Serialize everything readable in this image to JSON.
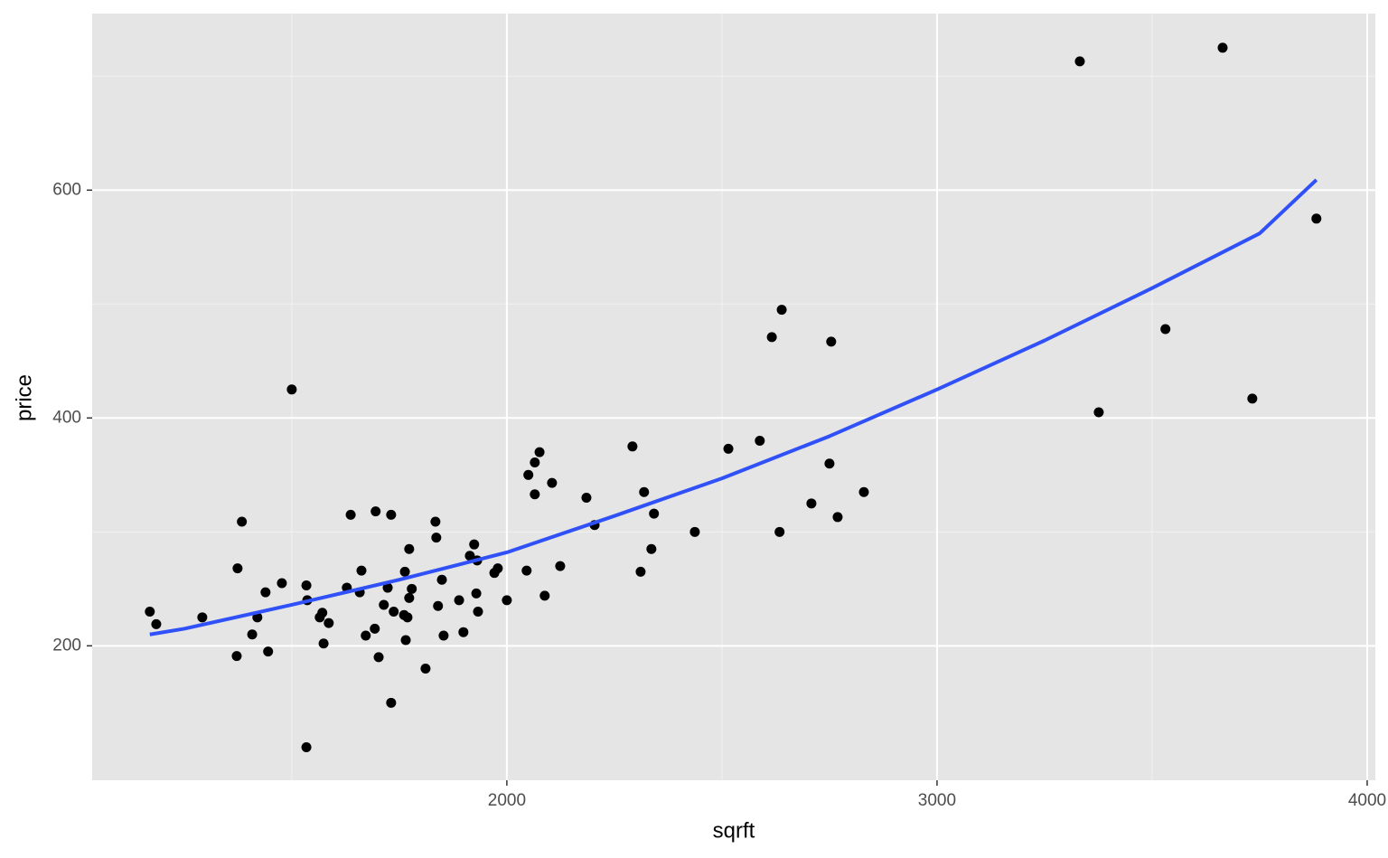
{
  "chart_data": {
    "type": "scatter",
    "xlabel": "sqrft",
    "ylabel": "price",
    "xlim": [
      1036,
      4019
    ],
    "ylim": [
      82,
      755
    ],
    "xticks": [
      2000,
      3000,
      4000
    ],
    "yticks": [
      200,
      400,
      600
    ],
    "minor_xticks": [
      1500,
      2500,
      3500
    ],
    "minor_yticks": [
      300,
      500,
      700
    ],
    "grid": true,
    "series": [
      {
        "type": "scatter",
        "color": "#000000",
        "x": [
          1170,
          1185,
          1292,
          1374,
          1372,
          1384,
          1408,
          1420,
          1439,
          1445,
          1477,
          1500,
          1534,
          1536,
          1534,
          1565,
          1571,
          1574,
          1586,
          1628,
          1637,
          1658,
          1662,
          1672,
          1693,
          1695,
          1702,
          1714,
          1723,
          1731,
          1731,
          1737,
          1761,
          1763,
          1765,
          1769,
          1773,
          1773,
          1779,
          1811,
          1834,
          1836,
          1840,
          1849,
          1853,
          1889,
          1899,
          1914,
          1924,
          1929,
          1931,
          1933,
          1971,
          1979,
          2000,
          2046,
          2050,
          2065,
          2065,
          2076,
          2088,
          2105,
          2124,
          2185,
          2204,
          2292,
          2311,
          2319,
          2336,
          2342,
          2437,
          2515,
          2588,
          2616,
          2634,
          2639,
          2708,
          2750,
          2754,
          2769,
          2830,
          3332,
          3376,
          3531,
          3664,
          3733,
          3882
        ],
        "y": [
          230,
          219,
          225,
          268,
          191,
          309,
          210,
          225,
          247,
          195,
          255,
          425,
          253,
          240,
          111,
          225,
          229,
          202,
          220,
          251,
          315,
          247,
          266,
          209,
          215,
          318,
          190,
          236,
          251,
          315,
          150,
          230,
          227,
          265,
          205,
          225,
          242,
          285,
          250,
          180,
          309,
          295,
          235,
          258,
          209,
          240,
          212,
          279,
          289,
          246,
          275,
          230,
          264,
          268,
          240,
          266,
          350,
          361,
          333,
          370,
          244,
          343,
          270,
          330,
          306,
          375,
          265,
          335,
          285,
          316,
          300,
          373,
          380,
          471,
          300,
          495,
          325,
          360,
          467,
          313,
          335,
          713,
          405,
          478,
          725,
          417,
          575
        ]
      },
      {
        "type": "line",
        "color": "#3050f8",
        "x": [
          1170,
          1250,
          1500,
          1750,
          2000,
          2250,
          2500,
          2750,
          3000,
          3250,
          3500,
          3750,
          3882
        ],
        "y": [
          210,
          215,
          236,
          258,
          282,
          314,
          347,
          384,
          425,
          468,
          514,
          562,
          609
        ]
      }
    ]
  }
}
